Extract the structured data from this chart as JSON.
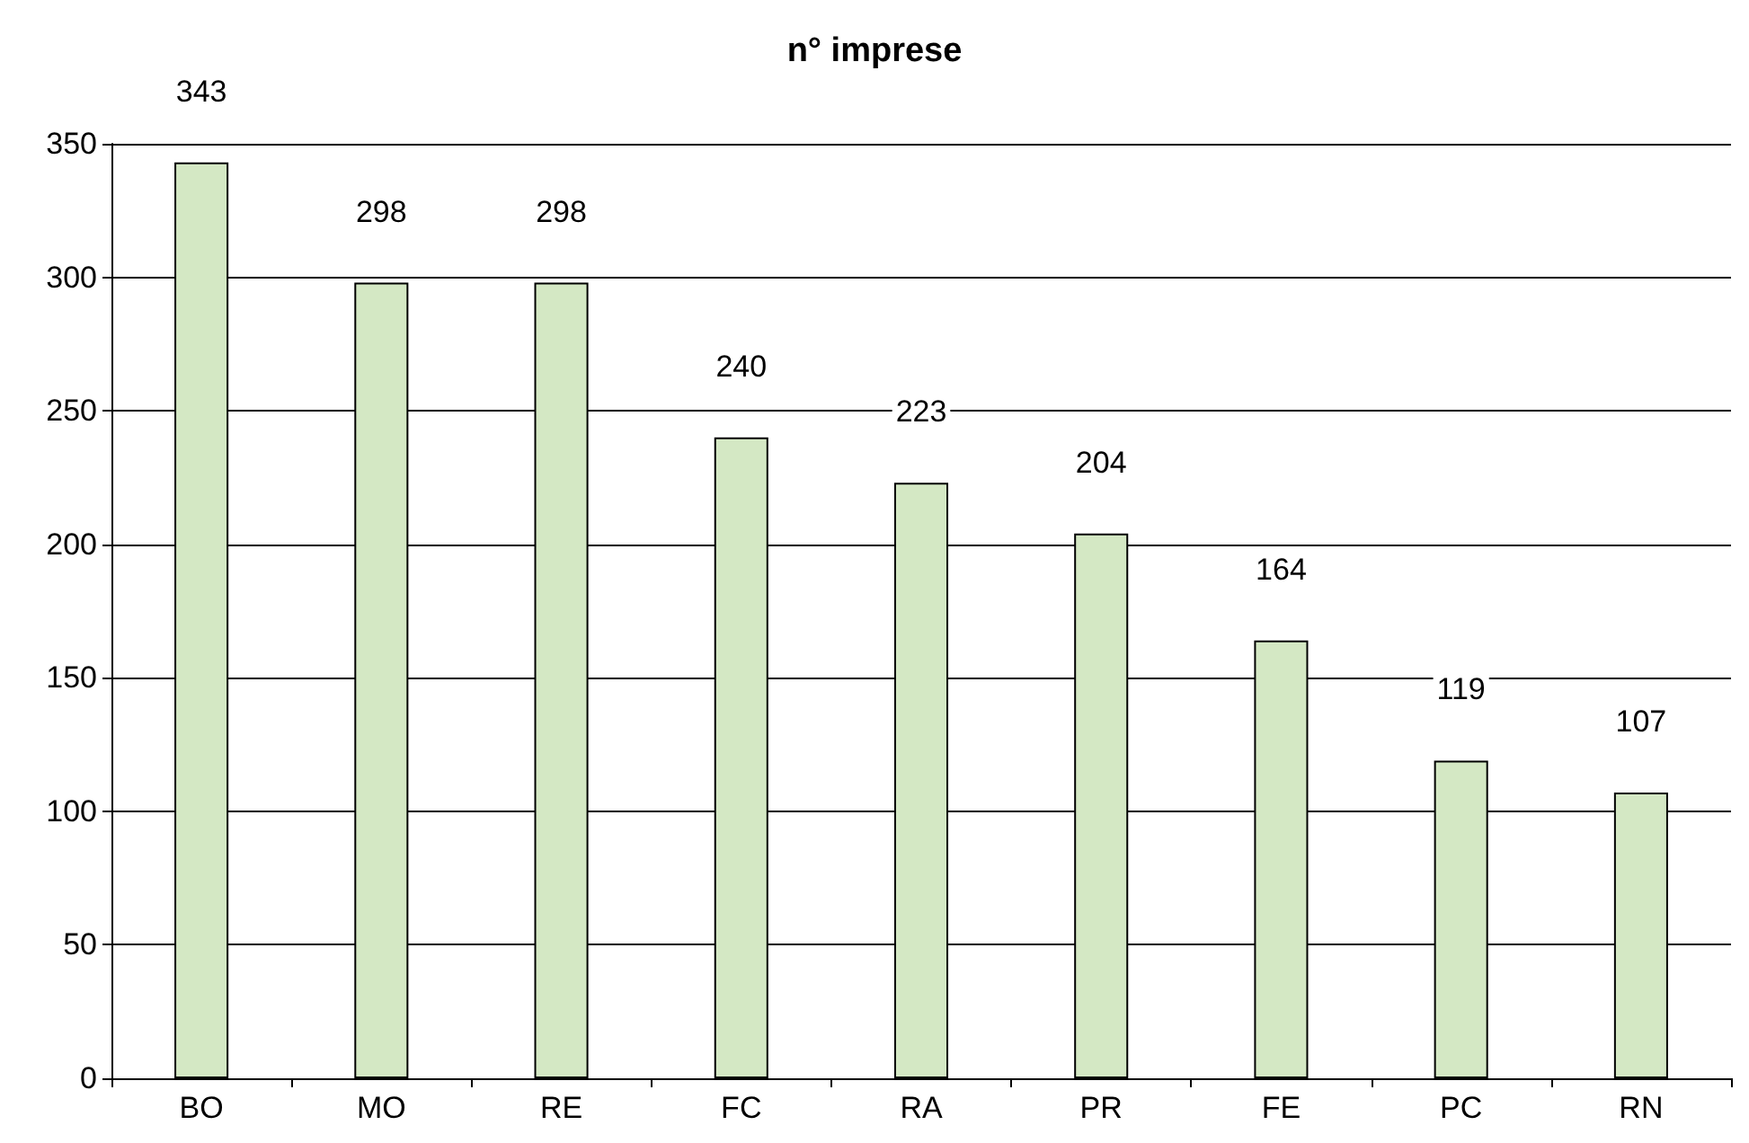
{
  "chart_data": {
    "type": "bar",
    "title": "n° imprese",
    "categories": [
      "BO",
      "MO",
      "RE",
      "FC",
      "RA",
      "PR",
      "FE",
      "PC",
      "RN"
    ],
    "values": [
      343,
      298,
      298,
      240,
      223,
      204,
      164,
      119,
      107
    ],
    "color": "#d4e8c4",
    "ylim": [
      0,
      350
    ],
    "yticks": [
      0,
      50,
      100,
      150,
      200,
      250,
      300,
      350
    ],
    "grid": "y",
    "data_labels": true
  }
}
